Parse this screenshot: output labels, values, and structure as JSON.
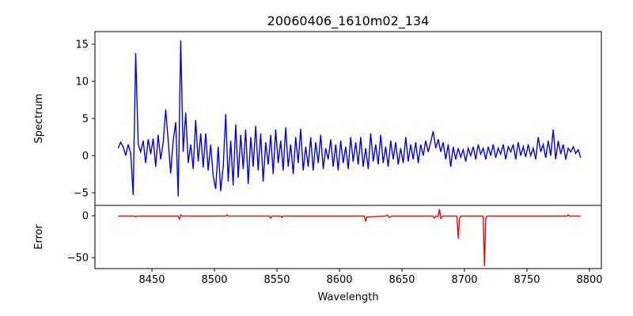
{
  "chart_data": [
    {
      "type": "line",
      "title": "20060406_1610m02_134",
      "xlabel": "",
      "ylabel": "Spectrum",
      "xlim": [
        8404.4,
        8809.5
      ],
      "ylim": [
        -6.7,
        16.7
      ],
      "yticks": [
        -5,
        0,
        5,
        10,
        15
      ],
      "ytick_labels": [
        "−5",
        "0",
        "5",
        "10",
        "15"
      ],
      "color": "#0000ff",
      "x_start": 8423,
      "x_step": 2,
      "values": [
        1.0,
        1.8,
        1.2,
        0.0,
        1.5,
        0.3,
        -5.3,
        13.8,
        1.5,
        0.5,
        2.0,
        -1.0,
        2.2,
        0.2,
        2.3,
        -1.5,
        2.8,
        -0.5,
        1.8,
        6.2,
        2.0,
        -2.4,
        2.0,
        4.5,
        -5.5,
        15.5,
        0.5,
        5.8,
        -1.0,
        1.5,
        -1.8,
        4.8,
        -0.8,
        3.0,
        -1.6,
        3.0,
        -2.0,
        1.5,
        -2.8,
        -4.5,
        1.2,
        -4.8,
        -1.5,
        5.6,
        -3.5,
        2.0,
        -4.0,
        4.2,
        -3.0,
        2.8,
        -1.8,
        3.5,
        -3.8,
        2.5,
        -1.5,
        4.0,
        -2.0,
        3.0,
        -3.5,
        1.8,
        -1.2,
        2.8,
        -2.5,
        3.5,
        -1.0,
        2.0,
        -2.0,
        3.8,
        -1.5,
        1.5,
        -2.5,
        2.5,
        -1.0,
        3.6,
        -2.0,
        1.2,
        -1.5,
        2.5,
        -2.0,
        1.8,
        -1.0,
        2.8,
        -1.8,
        1.0,
        -0.5,
        2.2,
        -1.5,
        1.5,
        -2.0,
        2.0,
        -1.0,
        1.2,
        -1.8,
        2.5,
        -0.8,
        1.8,
        -1.2,
        2.5,
        -1.5,
        1.0,
        -1.8,
        3.0,
        -0.8,
        1.5,
        -1.2,
        2.8,
        -1.0,
        1.2,
        -1.5,
        2.0,
        -0.5,
        1.8,
        -1.2,
        1.0,
        -1.0,
        2.5,
        -0.8,
        1.5,
        -0.5,
        1.8,
        -1.0,
        1.5,
        0.0,
        2.0,
        0.5,
        1.8,
        3.3,
        1.0,
        2.2,
        0.5,
        1.8,
        -0.5,
        1.5,
        -1.5,
        1.2,
        -0.5,
        1.0,
        -0.2,
        0.8,
        -0.8,
        1.0,
        0.0,
        1.2,
        -0.5,
        1.5,
        0.2,
        1.0,
        -0.5,
        1.2,
        0.0,
        1.5,
        -0.3,
        1.0,
        0.2,
        1.5,
        -0.5,
        1.2,
        0.5,
        1.5,
        -0.5,
        1.8,
        0.0,
        1.2,
        -0.2,
        1.5,
        0.0,
        1.0,
        -0.5,
        2.5,
        0.5,
        1.5,
        -0.3,
        2.0,
        0.0,
        3.5,
        -0.5,
        2.0,
        0.2,
        1.5,
        -0.5,
        1.0,
        0.5,
        1.2,
        0.3,
        0.8,
        -0.3
      ]
    },
    {
      "type": "line",
      "title": "",
      "xlabel": "Wavelength",
      "ylabel": "Error",
      "xlim": [
        8404.4,
        8809.5
      ],
      "ylim": [
        -63,
        12.3
      ],
      "xticks": [
        8450,
        8500,
        8550,
        8600,
        8650,
        8700,
        8750,
        8800
      ],
      "xtick_labels": [
        "8450",
        "8500",
        "8550",
        "8600",
        "8650",
        "8700",
        "8750",
        "8800"
      ],
      "yticks": [
        -50,
        0
      ],
      "ytick_labels": [
        "−50",
        "0"
      ],
      "color": "#ff0000",
      "points": [
        [
          8423,
          -0.5
        ],
        [
          8436,
          -0.5
        ],
        [
          8437,
          -1.5
        ],
        [
          8438,
          -0.5
        ],
        [
          8471,
          -0.5
        ],
        [
          8472,
          -4
        ],
        [
          8473,
          1
        ],
        [
          8474,
          -0.5
        ],
        [
          8509,
          -0.5
        ],
        [
          8510,
          1
        ],
        [
          8511,
          -0.3
        ],
        [
          8544,
          -0.5
        ],
        [
          8545,
          -3
        ],
        [
          8546,
          -0.5
        ],
        [
          8553,
          -0.5
        ],
        [
          8554,
          -2
        ],
        [
          8555,
          -0.5
        ],
        [
          8620,
          -0.5
        ],
        [
          8621,
          -7
        ],
        [
          8622,
          -1.5
        ],
        [
          8637,
          -0.5
        ],
        [
          8638,
          1
        ],
        [
          8640,
          -2
        ],
        [
          8642,
          -0.5
        ],
        [
          8675,
          -0.5
        ],
        [
          8676,
          -3
        ],
        [
          8677,
          -0.5
        ],
        [
          8679,
          -1
        ],
        [
          8680,
          8
        ],
        [
          8681,
          -3
        ],
        [
          8683,
          -0.5
        ],
        [
          8694,
          -0.5
        ],
        [
          8695,
          -27
        ],
        [
          8696,
          -3
        ],
        [
          8697,
          -0.5
        ],
        [
          8715,
          -0.5
        ],
        [
          8716,
          -60
        ],
        [
          8717,
          -3
        ],
        [
          8718,
          -0.5
        ],
        [
          8782,
          -0.5
        ],
        [
          8783,
          1
        ],
        [
          8784,
          -0.5
        ],
        [
          8793,
          -0.5
        ]
      ]
    }
  ]
}
